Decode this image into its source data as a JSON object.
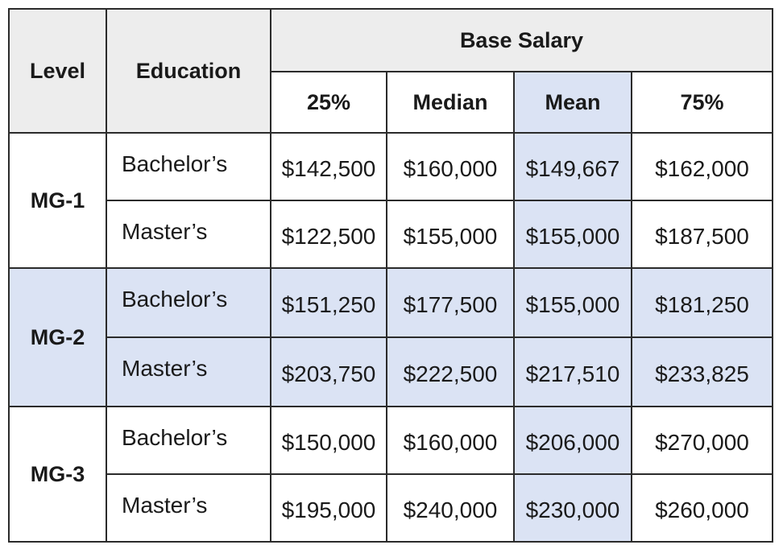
{
  "header": {
    "level": "Level",
    "education": "Education",
    "group": "Base Salary",
    "columns": [
      "25%",
      "Median",
      "Mean",
      "75%"
    ]
  },
  "rows": [
    {
      "level": "MG-1",
      "items": [
        {
          "education": "Bachelor’s",
          "values": [
            "$142,500",
            "$160,000",
            "$149,667",
            "$162,000"
          ]
        },
        {
          "education": "Master’s",
          "values": [
            "$122,500",
            "$155,000",
            "$155,000",
            "$187,500"
          ]
        }
      ]
    },
    {
      "level": "MG-2",
      "items": [
        {
          "education": "Bachelor’s",
          "values": [
            "$151,250",
            "$177,500",
            "$155,000",
            "$181,250"
          ]
        },
        {
          "education": "Master’s",
          "values": [
            "$203,750",
            "$222,500",
            "$217,510",
            "$233,825"
          ]
        }
      ]
    },
    {
      "level": "MG-3",
      "items": [
        {
          "education": "Bachelor’s",
          "values": [
            "$150,000",
            "$160,000",
            "$206,000",
            "$270,000"
          ]
        },
        {
          "education": "Master’s",
          "values": [
            "$195,000",
            "$240,000",
            "$230,000",
            "$260,000"
          ]
        }
      ]
    }
  ],
  "colors": {
    "header_gray": "#ededed",
    "highlight_blue": "#dbe3f4",
    "border": "#2b2b2b"
  }
}
